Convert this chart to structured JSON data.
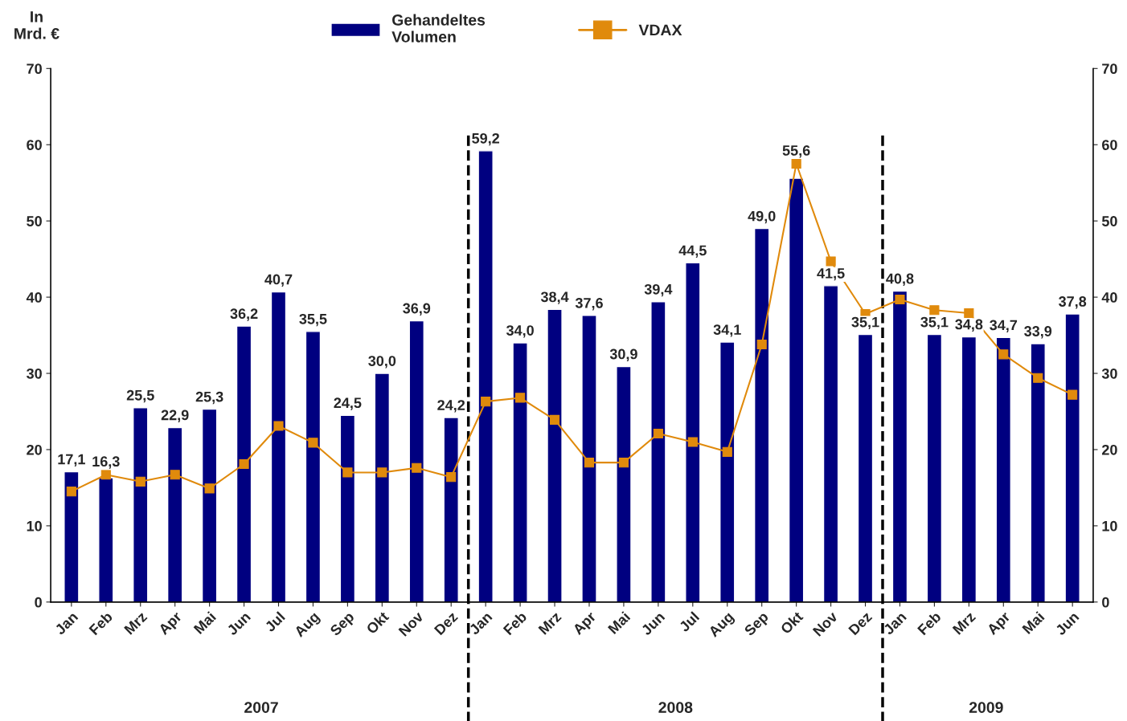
{
  "chart_data": {
    "type": "bar",
    "ylabel": "In\nMrd. €",
    "categories": [
      "Jan",
      "Feb",
      "Mrz",
      "Apr",
      "Mai",
      "Jun",
      "Jul",
      "Aug",
      "Sep",
      "Okt",
      "Nov",
      "Dez",
      "Jan",
      "Feb",
      "Mrz",
      "Apr",
      "Mai",
      "Jun",
      "Jul",
      "Aug",
      "Sep",
      "Okt",
      "Nov",
      "Dez",
      "Jan",
      "Feb",
      "Mrz",
      "Apr",
      "Mai",
      "Jun"
    ],
    "series": [
      {
        "name": "Gehandeltes\nVolumen",
        "color": "#000080",
        "values": [
          17.1,
          16.3,
          25.5,
          22.9,
          25.3,
          36.2,
          40.7,
          35.5,
          24.5,
          30.0,
          36.9,
          24.2,
          59.2,
          34.0,
          38.4,
          37.6,
          30.9,
          39.4,
          44.5,
          34.1,
          49.0,
          55.6,
          41.5,
          35.1,
          40.8,
          35.1,
          34.8,
          34.7,
          33.9,
          37.8
        ],
        "value_labels": [
          "17,1",
          "16,3",
          "25,5",
          "22,9",
          "25,3",
          "36,2",
          "40,7",
          "35,5",
          "24,5",
          "30,0",
          "36,9",
          "24,2",
          "59,2",
          "34,0",
          "38,4",
          "37,6",
          "30,9",
          "39,4",
          "44,5",
          "34,1",
          "49,0",
          "55,6",
          "41,5",
          "35,1",
          "40,8",
          "35,1",
          "34,8",
          "34,7",
          "33,9",
          "37,8"
        ]
      },
      {
        "name": "VDAX",
        "type": "line",
        "axis": "y2",
        "color": "#e08a0c",
        "marker": "square",
        "values": [
          14.5,
          16.7,
          15.8,
          16.7,
          14.9,
          18.1,
          23.1,
          20.9,
          17.0,
          17.0,
          17.6,
          16.4,
          26.3,
          26.8,
          23.9,
          18.3,
          18.3,
          22.1,
          21.0,
          19.7,
          33.8,
          57.5,
          44.7,
          37.8,
          39.7,
          38.3,
          37.9,
          32.5,
          29.4,
          27.2
        ]
      }
    ],
    "ylim": [
      0,
      70
    ],
    "yticks": [
      0,
      10,
      20,
      30,
      40,
      50,
      60,
      70
    ],
    "y2lim": [
      0,
      70
    ],
    "y2ticks": [
      0,
      10,
      20,
      30,
      40,
      50,
      60,
      70
    ],
    "annotations": [
      "2007",
      "2008",
      "2009"
    ],
    "grid": false,
    "legend": "top"
  }
}
